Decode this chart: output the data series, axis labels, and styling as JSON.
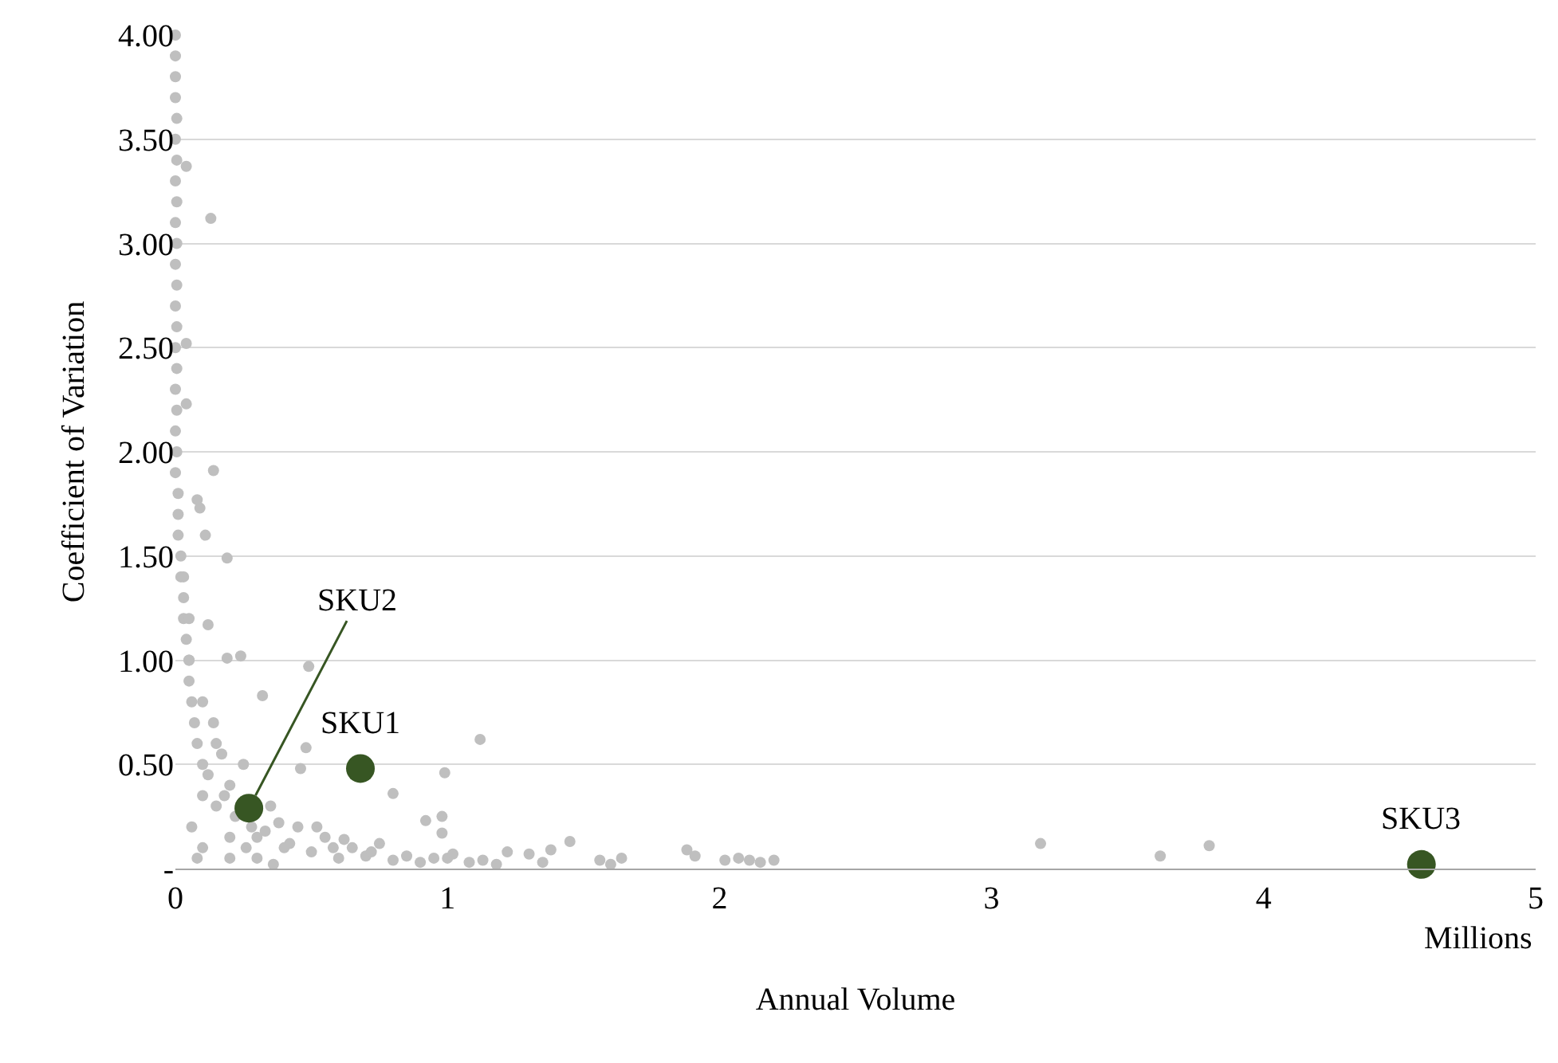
{
  "chart_data": {
    "type": "scatter",
    "xlabel": "Annual Volume",
    "ylabel": "Coefficient of Variation",
    "xlim": [
      0,
      5
    ],
    "xticks": [
      0,
      1,
      2,
      3,
      4,
      5
    ],
    "ylim": [
      0,
      4
    ],
    "yticks": [
      {
        "value": 0,
        "label": "-"
      },
      {
        "value": 0.5,
        "label": "0.50"
      },
      {
        "value": 1,
        "label": "1.00"
      },
      {
        "value": 1.5,
        "label": "1.50"
      },
      {
        "value": 2,
        "label": "2.00"
      },
      {
        "value": 2.5,
        "label": "2.50"
      },
      {
        "value": 3,
        "label": "3.00"
      },
      {
        "value": 3.5,
        "label": "3.50"
      },
      {
        "value": 4,
        "label": "4.00"
      }
    ],
    "grid": "y",
    "marker": "circle",
    "series": [
      {
        "color": "#bfbfbf",
        "x": [
          0.0,
          0.0,
          0.0,
          0.0,
          0.005,
          0.0,
          0.005,
          0.0,
          0.005,
          0.0,
          0.005,
          0.0,
          0.005,
          0.0,
          0.005,
          0.0,
          0.005,
          0.0,
          0.005,
          0.0,
          0.005,
          0.0,
          0.01,
          0.01,
          0.01,
          0.02,
          0.02,
          0.03,
          0.03,
          0.04,
          0.05,
          0.05,
          0.06,
          0.07,
          0.08,
          0.1,
          0.13,
          0.14,
          0.19,
          0.04,
          0.04,
          0.04,
          0.08,
          0.09,
          0.11,
          0.12,
          0.19,
          0.24,
          0.49,
          0.32,
          1.12,
          0.99,
          0.8,
          0.48,
          0.46,
          0.92,
          0.98,
          0.98,
          1.45,
          1.88,
          1.91,
          2.02,
          2.07,
          2.11,
          2.15,
          2.2,
          1.56,
          1.6,
          1.64,
          1.38,
          1.3,
          1.35,
          1.22,
          1.18,
          1.08,
          1.13,
          3.18,
          3.62,
          3.8,
          0.3,
          0.4,
          0.5,
          0.6,
          0.7,
          0.8,
          0.2,
          0.15,
          0.1,
          0.05,
          0.05,
          0.03,
          0.35,
          0.45,
          0.55,
          0.65,
          0.25,
          0.15,
          0.1,
          0.2,
          0.9,
          1.0,
          0.12,
          0.18,
          0.22,
          0.28,
          0.33,
          0.38,
          0.42,
          0.52,
          0.58,
          0.62,
          0.72,
          0.75,
          0.85,
          0.95,
          1.02,
          0.06,
          0.08,
          0.1,
          0.14,
          0.17,
          0.2,
          0.26,
          0.3,
          0.36
        ],
        "values": [
          4.0,
          3.9,
          3.8,
          3.7,
          3.6,
          3.5,
          3.4,
          3.3,
          3.2,
          3.1,
          3.0,
          2.9,
          2.8,
          2.7,
          2.6,
          2.5,
          2.4,
          2.3,
          2.2,
          2.1,
          2.0,
          1.9,
          1.8,
          1.7,
          1.6,
          1.5,
          1.4,
          1.3,
          1.2,
          1.1,
          1.0,
          0.9,
          0.8,
          0.7,
          0.6,
          0.5,
          3.12,
          1.91,
          1.49,
          2.52,
          3.37,
          2.23,
          1.77,
          1.73,
          1.6,
          1.17,
          1.01,
          1.02,
          0.97,
          0.83,
          0.62,
          0.46,
          0.36,
          0.58,
          0.48,
          0.23,
          0.25,
          0.17,
          0.13,
          0.09,
          0.06,
          0.04,
          0.05,
          0.04,
          0.03,
          0.04,
          0.04,
          0.02,
          0.05,
          0.09,
          0.07,
          0.03,
          0.08,
          0.02,
          0.03,
          0.04,
          0.12,
          0.06,
          0.11,
          0.15,
          0.1,
          0.08,
          0.05,
          0.06,
          0.04,
          0.4,
          0.6,
          0.8,
          1.0,
          1.2,
          1.4,
          0.3,
          0.2,
          0.15,
          0.1,
          0.5,
          0.3,
          0.1,
          0.05,
          0.03,
          0.05,
          0.45,
          0.35,
          0.25,
          0.2,
          0.18,
          0.22,
          0.12,
          0.2,
          0.1,
          0.14,
          0.08,
          0.12,
          0.06,
          0.05,
          0.07,
          0.2,
          0.05,
          0.35,
          0.7,
          0.55,
          0.15,
          0.1,
          0.05,
          0.02
        ]
      },
      {
        "color": "#375623",
        "x": [
          0.68,
          0.27,
          4.58
        ],
        "values": [
          0.48,
          0.29,
          0.02
        ]
      }
    ],
    "annotations": [
      {
        "text": "SKU1",
        "x": 0.68,
        "y": 0.48
      },
      {
        "text": "SKU2",
        "x": 0.27,
        "y": 0.29
      },
      {
        "text": "SKU3",
        "x": 4.58,
        "y": 0.02
      },
      "Millions"
    ]
  }
}
